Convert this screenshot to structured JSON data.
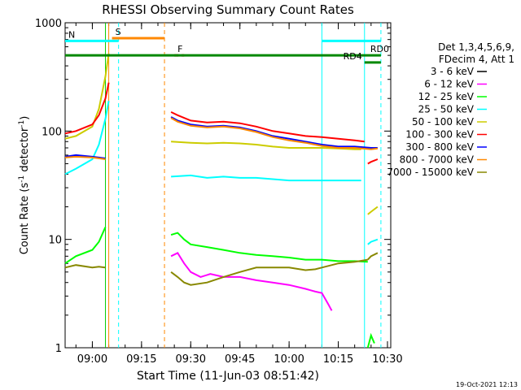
{
  "chart_data": {
    "type": "line",
    "title": "RHESSI Observing Summary Count Rates",
    "xlabel": "Start Time (11-Jun-03 08:51:42)",
    "ylabel_prefix": "Count Rate (s",
    "ylabel_mid": " detector",
    "ylabel_suffix": ")",
    "ylabel_sup": "-1",
    "footer": "19-Oct-2021 12:13",
    "y_scale": "log",
    "ylim": [
      1,
      1000
    ],
    "xlim": [
      "08:51:42",
      "10:31:00"
    ],
    "x_ticks": [
      {
        "t": "09:00",
        "label": "09:00"
      },
      {
        "t": "09:15",
        "label": "09:15"
      },
      {
        "t": "09:30",
        "label": "09:30"
      },
      {
        "t": "09:45",
        "label": "09:45"
      },
      {
        "t": "10:00",
        "label": "10:00"
      },
      {
        "t": "10:15",
        "label": "10:15"
      },
      {
        "t": "10:30",
        "label": "10:30"
      }
    ],
    "y_ticks": [
      {
        "v": 1,
        "label": "1"
      },
      {
        "v": 10,
        "label": "10"
      },
      {
        "v": 100,
        "label": "100"
      },
      {
        "v": 1000,
        "label": "1000"
      }
    ],
    "legend_header": [
      "Det 1,3,4,5,6,9,",
      "FDecim 4, Att 1"
    ],
    "legend_position": "right",
    "series": [
      {
        "name": "3 - 6 keV",
        "color": "#000000",
        "segments": []
      },
      {
        "name": "6 - 12 keV",
        "color": "#ff00ff",
        "segments": [
          {
            "x": [
              "09:24",
              "09:26",
              "09:28",
              "09:30",
              "09:33",
              "09:36",
              "09:40",
              "09:45",
              "09:50",
              "09:55",
              "10:00",
              "10:05",
              "10:08",
              "10:10",
              "10:12",
              "10:13"
            ],
            "y": [
              7,
              7.5,
              6,
              5,
              4.5,
              4.8,
              4.5,
              4.5,
              4.2,
              4,
              3.8,
              3.5,
              3.3,
              3.2,
              2.5,
              2.2
            ]
          }
        ]
      },
      {
        "name": "12 - 25 keV",
        "color": "#00ff00",
        "segments": [
          {
            "x": [
              "08:51:42",
              "08:55",
              "09:00",
              "09:02",
              "09:04"
            ],
            "y": [
              6,
              7,
              8,
              9.5,
              13
            ]
          },
          {
            "x": [
              "09:24",
              "09:26",
              "09:28",
              "09:30",
              "09:35",
              "09:40",
              "09:45",
              "09:50",
              "09:55",
              "10:00",
              "10:05",
              "10:10",
              "10:15",
              "10:20",
              "10:24"
            ],
            "y": [
              11,
              11.5,
              10,
              9,
              8.5,
              8,
              7.5,
              7.2,
              7,
              6.8,
              6.5,
              6.5,
              6.3,
              6.3,
              6.2
            ]
          },
          {
            "x": [
              "10:24",
              "10:25",
              "10:26"
            ],
            "y": [
              1,
              1.3,
              1.1
            ]
          }
        ]
      },
      {
        "name": "25 - 50 keV",
        "color": "#00ffff",
        "segments": [
          {
            "x": [
              "08:51:42",
              "08:55",
              "09:00",
              "09:02",
              "09:04",
              "09:05"
            ],
            "y": [
              40,
              45,
              55,
              75,
              130,
              190
            ]
          },
          {
            "x": [
              "09:24",
              "09:30",
              "09:35",
              "09:40",
              "09:45",
              "09:50",
              "09:55",
              "10:00",
              "10:05",
              "10:10",
              "10:15",
              "10:20",
              "10:22"
            ],
            "y": [
              38,
              39,
              37,
              38,
              37,
              37,
              36,
              35,
              35,
              35,
              35,
              35,
              35
            ]
          },
          {
            "x": [
              "10:24",
              "10:25",
              "10:27"
            ],
            "y": [
              9,
              9.5,
              10
            ]
          }
        ]
      },
      {
        "name": "50 - 100 keV",
        "color": "#cccc00",
        "segments": [
          {
            "x": [
              "08:51:42",
              "08:55",
              "09:00",
              "09:02",
              "09:04",
              "09:05"
            ],
            "y": [
              85,
              90,
              110,
              160,
              320,
              520
            ]
          },
          {
            "x": [
              "09:24",
              "09:30",
              "09:35",
              "09:40",
              "09:45",
              "09:50",
              "09:55",
              "10:00",
              "10:05",
              "10:10",
              "10:15",
              "10:20",
              "10:22"
            ],
            "y": [
              80,
              78,
              77,
              78,
              77,
              75,
              72,
              70,
              70,
              70,
              69,
              68,
              68
            ]
          },
          {
            "x": [
              "10:24",
              "10:25",
              "10:27"
            ],
            "y": [
              17,
              18,
              20
            ]
          }
        ]
      },
      {
        "name": "100 - 300 keV",
        "color": "#ff0000",
        "segments": [
          {
            "x": [
              "08:51:42",
              "08:55",
              "09:00",
              "09:02",
              "09:04",
              "09:05"
            ],
            "y": [
              95,
              100,
              115,
              140,
              200,
              280
            ]
          },
          {
            "x": [
              "09:24",
              "09:26",
              "09:30",
              "09:35",
              "09:40",
              "09:45",
              "09:50",
              "09:55",
              "10:00",
              "10:05",
              "10:10",
              "10:15",
              "10:20",
              "10:23"
            ],
            "y": [
              150,
              140,
              125,
              120,
              122,
              118,
              110,
              100,
              95,
              90,
              88,
              85,
              82,
              80
            ]
          },
          {
            "x": [
              "10:24",
              "10:25",
              "10:27"
            ],
            "y": [
              50,
              52,
              55
            ]
          }
        ]
      },
      {
        "name": "300 - 800 keV",
        "color": "#0000ff",
        "segments": [
          {
            "x": [
              "08:51:42",
              "08:55",
              "09:00",
              "09:02",
              "09:04"
            ],
            "y": [
              58,
              60,
              58,
              57,
              56
            ]
          },
          {
            "x": [
              "09:24",
              "09:26",
              "09:30",
              "09:35",
              "09:40",
              "09:45",
              "09:50",
              "09:55",
              "10:00",
              "10:05",
              "10:10",
              "10:15",
              "10:20",
              "10:25",
              "10:27"
            ],
            "y": [
              135,
              125,
              115,
              110,
              112,
              108,
              100,
              90,
              85,
              80,
              75,
              72,
              72,
              70,
              70
            ]
          }
        ]
      },
      {
        "name": "800 - 7000 keV",
        "color": "#ff8800",
        "segments": [
          {
            "x": [
              "08:51:42",
              "08:55",
              "09:00",
              "09:02",
              "09:04"
            ],
            "y": [
              57,
              58,
              57,
              56,
              55
            ]
          },
          {
            "x": [
              "09:24",
              "09:26",
              "09:30",
              "09:35",
              "09:40",
              "09:45",
              "09:50",
              "09:55",
              "10:00",
              "10:05",
              "10:10",
              "10:15",
              "10:20",
              "10:25",
              "10:27"
            ],
            "y": [
              132,
              122,
              112,
              108,
              110,
              106,
              98,
              88,
              82,
              78,
              73,
              70,
              70,
              68,
              69
            ]
          }
        ]
      },
      {
        "name": "7000 - 15000 keV",
        "color": "#888800",
        "segments": [
          {
            "x": [
              "08:51:42",
              "08:55",
              "09:00",
              "09:02",
              "09:04"
            ],
            "y": [
              5.5,
              5.8,
              5.5,
              5.6,
              5.5
            ]
          },
          {
            "x": [
              "09:24",
              "09:26",
              "09:28",
              "09:30",
              "09:35",
              "09:40",
              "09:45",
              "09:50",
              "09:55",
              "10:00",
              "10:05",
              "10:08",
              "10:10",
              "10:15",
              "10:20",
              "10:24"
            ],
            "y": [
              5,
              4.5,
              4,
              3.8,
              4,
              4.5,
              5,
              5.5,
              5.5,
              5.5,
              5.2,
              5.3,
              5.5,
              6,
              6.2,
              6.5
            ]
          },
          {
            "x": [
              "10:24",
              "10:25",
              "10:27"
            ],
            "y": [
              6.5,
              7,
              7.5
            ]
          }
        ]
      }
    ],
    "bars": [
      {
        "label": "S",
        "color": "#ff8800",
        "start": "09:06",
        "end": "09:22",
        "level": 720
      },
      {
        "label": "N",
        "color": "#00ffff",
        "start": "08:51:42",
        "end": "09:08",
        "level": 680
      },
      {
        "label": "F",
        "color": "#ff0000",
        "start": "09:25",
        "end": "09:28",
        "level": 500,
        "dashed": true
      },
      {
        "label": "RD0",
        "color": "#008800",
        "start": "08:51:42",
        "end": "10:28",
        "level": 500
      },
      {
        "label": "RD4",
        "color": "#008800",
        "start": "10:23",
        "end": "10:28",
        "level": 430
      },
      {
        "label": "",
        "color": "#00ffff",
        "start": "10:10",
        "end": "10:28",
        "level": 680
      }
    ],
    "vlines": [
      {
        "t": "09:05",
        "color": "#ff8800",
        "style": "solid"
      },
      {
        "t": "09:04",
        "color": "#00cc00",
        "style": "solid"
      },
      {
        "t": "09:08",
        "color": "#00ffff",
        "style": "dashed"
      },
      {
        "t": "09:22",
        "color": "#ff8800",
        "style": "dashed"
      },
      {
        "t": "10:10",
        "color": "#00ffff",
        "style": "solid"
      },
      {
        "t": "10:23",
        "color": "#00ffff",
        "style": "solid"
      },
      {
        "t": "10:28",
        "color": "#00ffff",
        "style": "dashed"
      }
    ]
  }
}
